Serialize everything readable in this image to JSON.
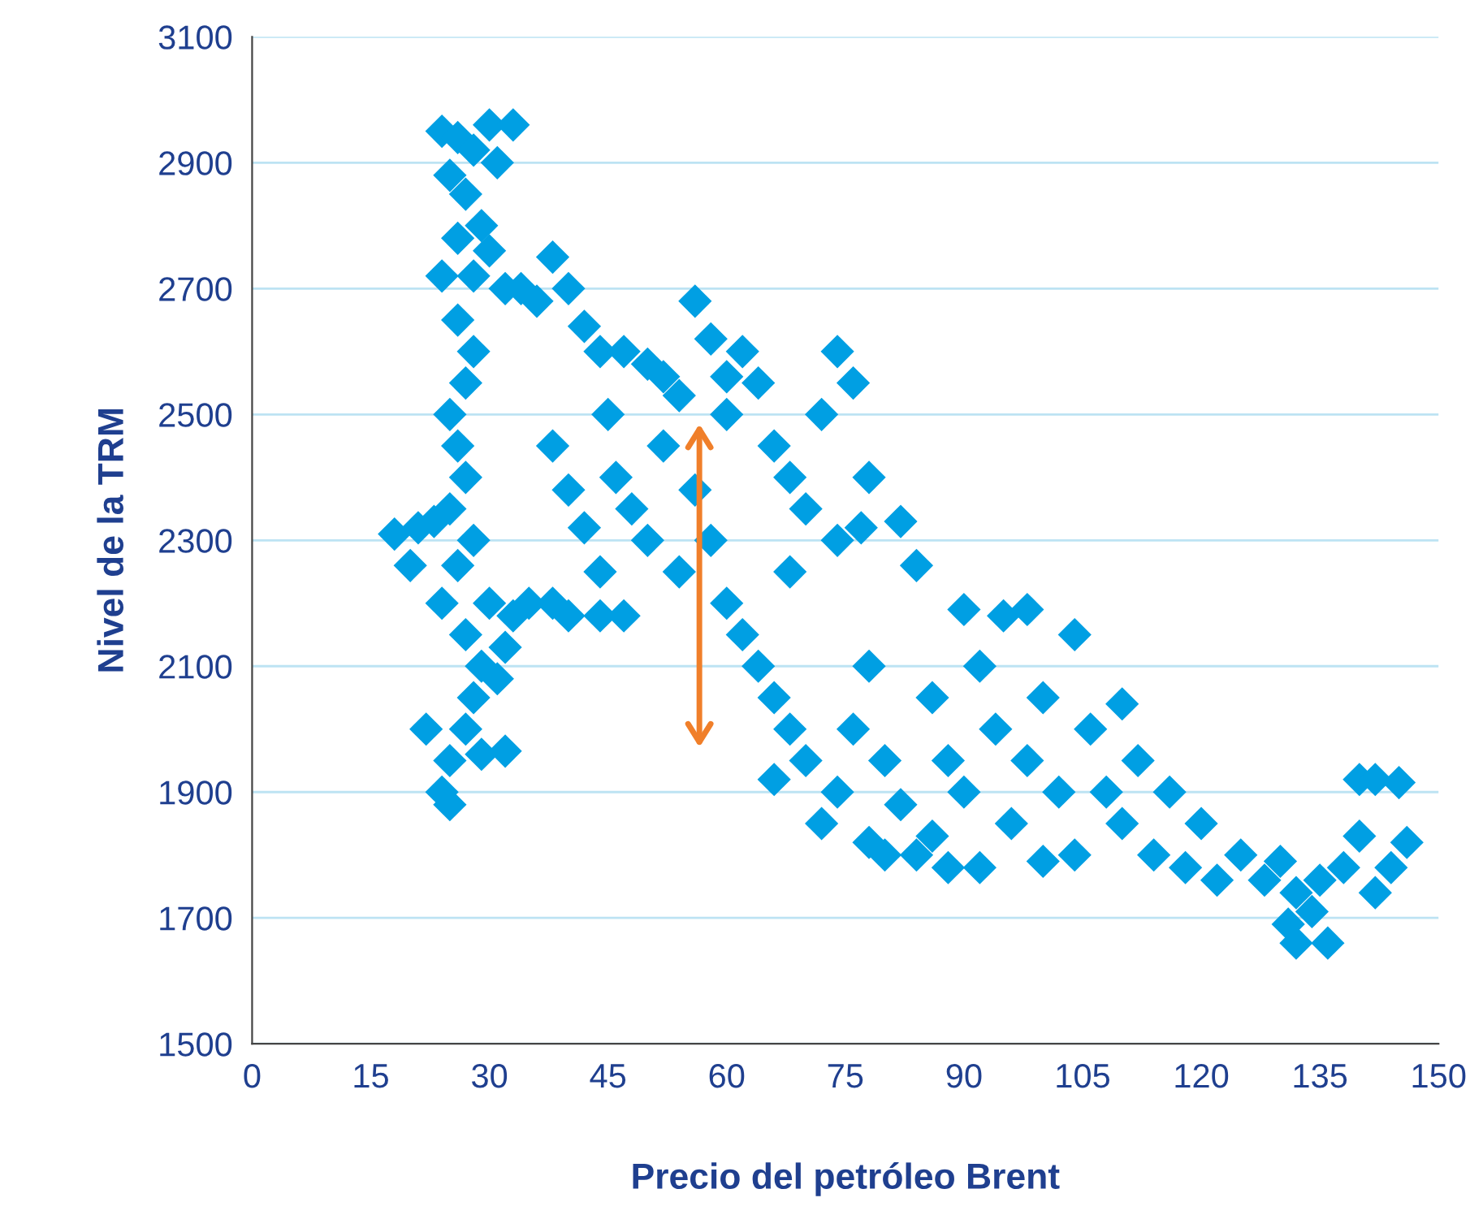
{
  "chart_data": {
    "type": "scatter",
    "xlabel": "Precio del petróleo Brent",
    "ylabel": "Nivel de la TRM",
    "xlim": [
      0,
      150
    ],
    "xticks": [
      0,
      15,
      30,
      45,
      60,
      75,
      90,
      105,
      120,
      135,
      150
    ],
    "ylim": [
      1500,
      3100
    ],
    "yticks": [
      1500,
      1700,
      1900,
      2100,
      2300,
      2500,
      2700,
      2900,
      3100
    ],
    "grid": "y",
    "marker": "diamond",
    "series": [
      {
        "color": "#009fe3",
        "x": [
          24,
          26,
          28,
          30,
          33,
          25,
          27,
          29,
          31,
          26,
          28,
          30,
          32,
          24,
          26,
          28,
          27,
          25,
          26,
          27,
          25,
          28,
          26,
          24,
          27,
          29,
          28,
          27,
          25,
          24,
          25,
          22,
          29,
          32,
          18,
          20,
          21,
          23,
          30,
          33,
          35,
          32,
          31,
          34,
          36,
          38,
          40,
          42,
          44,
          47,
          50,
          52,
          54,
          38,
          40,
          42,
          44,
          46,
          48,
          50,
          52,
          54,
          56,
          58,
          60,
          62,
          64,
          66,
          68,
          70,
          72,
          74,
          76,
          78,
          60,
          62,
          64,
          66,
          56,
          58,
          60,
          45,
          47,
          40,
          38,
          44,
          68,
          74,
          77,
          82,
          84,
          66,
          68,
          70,
          72,
          74,
          76,
          78,
          80,
          82,
          84,
          86,
          88,
          90,
          92,
          94,
          96,
          98,
          100,
          102,
          104,
          106,
          108,
          110,
          112,
          114,
          116,
          118,
          120,
          90,
          95,
          98,
          104,
          110,
          92,
          100,
          122,
          125,
          128,
          130,
          132,
          131,
          132,
          134,
          136,
          135,
          138,
          140,
          140,
          142,
          145,
          146,
          142,
          144,
          78,
          80,
          86,
          88
        ],
        "values": [
          2950,
          2940,
          2920,
          2960,
          2960,
          2880,
          2850,
          2800,
          2900,
          2780,
          2720,
          2760,
          2700,
          2720,
          2650,
          2600,
          2550,
          2500,
          2450,
          2400,
          2350,
          2300,
          2260,
          2200,
          2150,
          2100,
          2050,
          2000,
          1950,
          1900,
          1880,
          2000,
          1960,
          1965,
          2310,
          2260,
          2320,
          2330,
          2200,
          2180,
          2200,
          2130,
          2080,
          2700,
          2680,
          2750,
          2700,
          2640,
          2600,
          2600,
          2580,
          2560,
          2530,
          2450,
          2380,
          2320,
          2250,
          2400,
          2350,
          2300,
          2450,
          2250,
          2380,
          2300,
          2500,
          2600,
          2550,
          2450,
          2400,
          2350,
          2500,
          2600,
          2550,
          2400,
          2200,
          2150,
          2100,
          2050,
          2680,
          2620,
          2560,
          2500,
          2180,
          2180,
          2200,
          2180,
          2250,
          2300,
          2320,
          2330,
          2260,
          1920,
          2000,
          1950,
          1850,
          1900,
          2000,
          2100,
          1950,
          1880,
          1800,
          2050,
          1950,
          1900,
          2100,
          2000,
          1850,
          1950,
          2050,
          1900,
          1800,
          2000,
          1900,
          1850,
          1950,
          1800,
          1900,
          1780,
          1850,
          2190,
          2180,
          2190,
          2150,
          2040,
          1780,
          1790,
          1760,
          1800,
          1760,
          1790,
          1740,
          1690,
          1660,
          1710,
          1660,
          1760,
          1780,
          1830,
          1920,
          1920,
          1915,
          1820,
          1740,
          1780,
          1820,
          1800,
          1830,
          1780
        ]
      }
    ]
  }
}
